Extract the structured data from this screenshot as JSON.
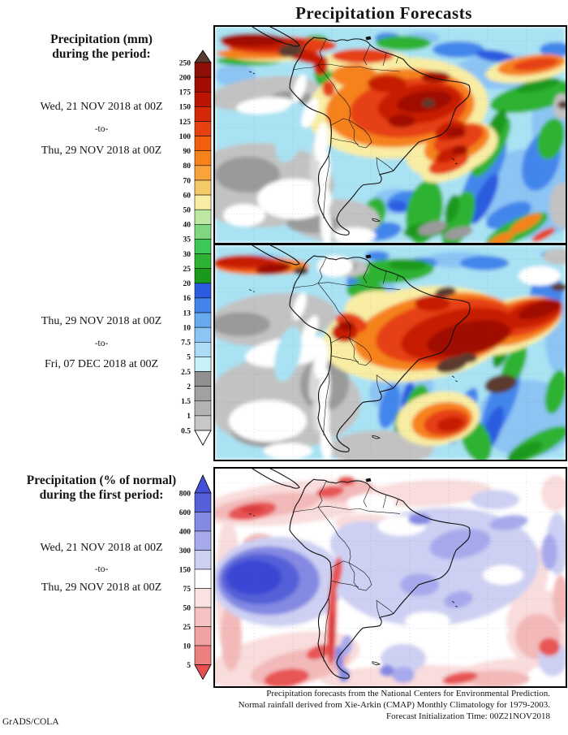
{
  "title": "Precipitation Forecasts",
  "credit": "GrADS/COLA",
  "sections": [
    {
      "heading": [
        "Precipitation (mm)",
        "during the period:"
      ],
      "period": {
        "start": "Wed, 21 NOV 2018 at 00Z",
        "sep": "-to-",
        "end": "Thu, 29 NOV 2018 at 00Z"
      }
    },
    {
      "period": {
        "start": "Thu, 29 NOV 2018 at 00Z",
        "sep": "-to-",
        "end": "Fri, 07 DEC 2018 at 00Z"
      }
    },
    {
      "heading": [
        "Precipitation (% of normal)",
        "during the first period:"
      ],
      "period": {
        "start": "Wed, 21 NOV 2018 at 00Z",
        "sep": "-to-",
        "end": "Thu, 29 NOV 2018 at 00Z"
      }
    }
  ],
  "footer": {
    "lines": [
      "Precipitation forecasts from the National Centers for Environmental Prediction.",
      "Normal rainfall derived from Xie-Arkin (CMAP) Monthly Climatology for 1979-2003.",
      "Forecast Initialization Time: 00Z21NOV2018"
    ]
  },
  "colorbars": [
    {
      "name": "precipitation-mm-scale",
      "units": "mm",
      "labels": [
        "250",
        "200",
        "175",
        "150",
        "125",
        "100",
        "90",
        "80",
        "70",
        "60",
        "50",
        "40",
        "35",
        "30",
        "25",
        "20",
        "16",
        "13",
        "10",
        "7.5",
        "5",
        "2.5",
        "2",
        "1.5",
        "1",
        "0.5"
      ],
      "colors": [
        "#8e0f07",
        "#a30d04",
        "#bd1503",
        "#d52808",
        "#e64113",
        "#ef5f0e",
        "#f6821a",
        "#f8a33c",
        "#f4c968",
        "#f8eda3",
        "#bce8a2",
        "#7fd87f",
        "#3cc757",
        "#2eb233",
        "#1b991b",
        "#2b5ce0",
        "#4286ec",
        "#68aaf0",
        "#8cc4f4",
        "#addcf6",
        "#c9f2f8",
        "#909090",
        "#a1a1a1",
        "#b3b3b3",
        "#c7c7c7"
      ],
      "over_color": "#5a3a2e",
      "under_color": "#ffffff"
    },
    {
      "name": "percent-of-normal-scale",
      "units": "% of normal",
      "labels": [
        "800",
        "600",
        "400",
        "300",
        "150",
        "75",
        "50",
        "25",
        "10",
        "5"
      ],
      "colors": [
        "#5560d8",
        "#8489e2",
        "#a6aaec",
        "#cdd0f2",
        "#ffffff",
        "#fae2e2",
        "#f6c3c3",
        "#f2a2a2",
        "#ee7f7f"
      ],
      "over_color": "#4450d8",
      "under_color": "#e94f4f"
    }
  ],
  "chart_data": [
    {
      "type": "heatmap",
      "title": "Precipitation (mm) during the period Wed, 21 NOV 2018 at 00Z -to- Thu, 29 NOV 2018 at 00Z",
      "units": "mm",
      "scale_levels": [
        0.5,
        1,
        1.5,
        2,
        2.5,
        5,
        7.5,
        10,
        13,
        16,
        20,
        25,
        30,
        35,
        40,
        50,
        60,
        70,
        80,
        90,
        100,
        125,
        150,
        175,
        200,
        250
      ],
      "legend_position": "left"
    },
    {
      "type": "heatmap",
      "title": "Precipitation (mm) during the period Thu, 29 NOV 2018 at 00Z -to- Fri, 07 DEC 2018 at 00Z",
      "units": "mm",
      "scale_levels": [
        0.5,
        1,
        1.5,
        2,
        2.5,
        5,
        7.5,
        10,
        13,
        16,
        20,
        25,
        30,
        35,
        40,
        50,
        60,
        70,
        80,
        90,
        100,
        125,
        150,
        175,
        200,
        250
      ],
      "legend_position": "left"
    },
    {
      "type": "heatmap",
      "title": "Precipitation (% of normal) during the first period Wed, 21 NOV 2018 at 00Z -to- Thu, 29 NOV 2018 at 00Z",
      "units": "% of normal",
      "scale_levels": [
        5,
        10,
        25,
        50,
        75,
        150,
        300,
        400,
        600,
        800
      ],
      "legend_position": "left"
    }
  ]
}
